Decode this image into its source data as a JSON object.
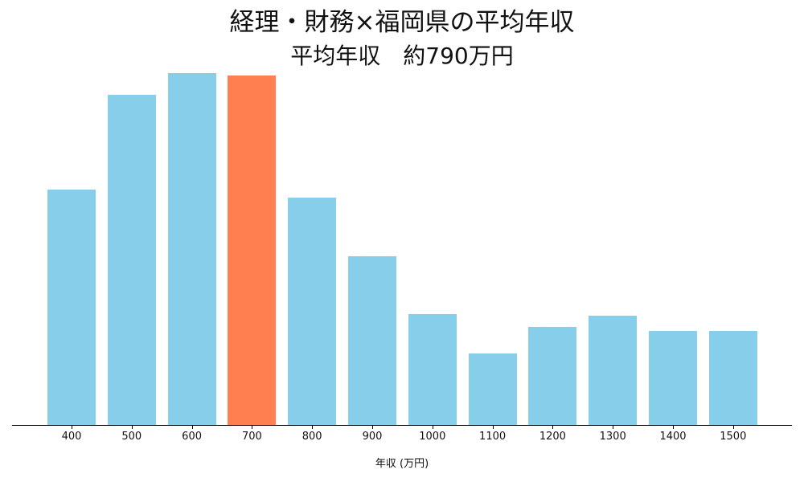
{
  "chart_data": {
    "type": "bar",
    "title": "経理・財務×福岡県の平均年収",
    "subtitle": "平均年収　約790万円",
    "xlabel": "年収 (万円)",
    "ylabel": "",
    "categories": [
      "400",
      "500",
      "600",
      "700",
      "800",
      "900",
      "1000",
      "1100",
      "1200",
      "1300",
      "1400",
      "1500"
    ],
    "values": [
      293,
      411,
      438,
      435,
      283,
      210,
      138,
      89,
      122,
      136,
      117,
      117
    ],
    "value_units": "relative bar height (no y-axis shown)",
    "highlight_category": "700",
    "colors": {
      "default": "#87CEEB",
      "highlight": "#FF7F50",
      "axis": "#000000"
    },
    "y_axis_visible": false,
    "grid": false,
    "legend": "none"
  }
}
